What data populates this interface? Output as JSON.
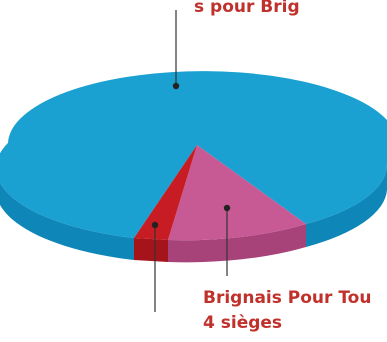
{
  "chart_data": {
    "type": "pie",
    "style": "3d",
    "slices": [
      {
        "label": "Brignais Pour Tou",
        "value_label": "4 sièges",
        "seats": 4,
        "color": "#c75a94"
      },
      {
        "label": "",
        "value_label": "",
        "seats": 1,
        "color": "#c71c24"
      },
      {
        "label": "",
        "value_label": "",
        "seats": 24,
        "color": "#1aa1d1"
      }
    ],
    "top_label_fragment": "s pour Brig"
  }
}
